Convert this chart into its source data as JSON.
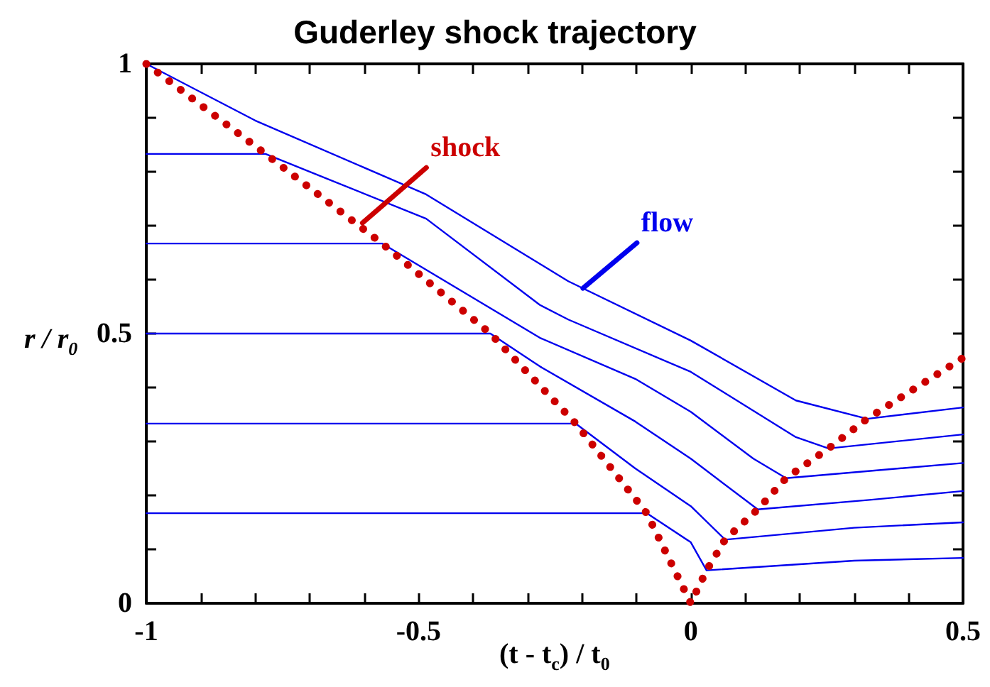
{
  "chart_data": {
    "type": "line",
    "title": "Guderley shock trajectory",
    "xlabel": "(t - t$_{c}$) / t$_{0}$",
    "ylabel": "r / r$_{0}$",
    "xlim": [
      -1,
      0.5
    ],
    "ylim": [
      0,
      1
    ],
    "xticks": [
      -1,
      {
        "value": -0.9,
        "label": null
      },
      {
        "value": -0.8,
        "label": null
      },
      {
        "value": -0.7,
        "label": null
      },
      {
        "value": -0.6,
        "label": null
      },
      -0.5,
      {
        "value": -0.4,
        "label": null
      },
      {
        "value": -0.3,
        "label": null
      },
      {
        "value": -0.2,
        "label": null
      },
      {
        "value": -0.1,
        "label": null
      },
      0,
      {
        "value": 0.1,
        "label": null
      },
      {
        "value": 0.2,
        "label": null
      },
      {
        "value": 0.3,
        "label": null
      },
      {
        "value": 0.4,
        "label": null
      },
      0.5
    ],
    "yticks": [
      0,
      {
        "value": 0.1,
        "label": null
      },
      {
        "value": 0.2,
        "label": null
      },
      {
        "value": 0.3,
        "label": null
      },
      {
        "value": 0.4,
        "label": null
      },
      0.5,
      {
        "value": 0.6,
        "label": null
      },
      {
        "value": 0.7,
        "label": null
      },
      {
        "value": 0.8,
        "label": null
      },
      {
        "value": 0.9,
        "label": null
      },
      1
    ],
    "grid": false,
    "marker": "none",
    "series": [
      {
        "color": "#0000ee",
        "line_style": "solid",
        "x": [
          -1,
          -0.8,
          -0.486,
          -0.225,
          0,
          0.193,
          0.324,
          0.5
        ],
        "values": [
          1,
          0.895,
          0.758,
          0.597,
          0.487,
          0.376,
          0.342,
          0.363
        ]
      },
      {
        "color": "#0000ee",
        "line_style": "solid",
        "x": [
          -1,
          -0.781,
          -0.486,
          -0.277,
          -0.225,
          0,
          0.193,
          0.253,
          0.5
        ],
        "values": [
          0.833,
          0.833,
          0.713,
          0.553,
          0.526,
          0.429,
          0.308,
          0.287,
          0.313
        ]
      },
      {
        "color": "#0000ee",
        "line_style": "solid",
        "x": [
          -1,
          -0.567,
          -0.277,
          -0.102,
          0,
          0.115,
          0.175,
          0.5
        ],
        "values": [
          0.667,
          0.667,
          0.492,
          0.416,
          0.355,
          0.268,
          0.232,
          0.26
        ]
      },
      {
        "color": "#0000ee",
        "line_style": "solid",
        "x": [
          -1,
          -0.368,
          -0.277,
          -0.102,
          0,
          0.123,
          0.332,
          0.5
        ],
        "values": [
          0.5,
          0.5,
          0.439,
          0.337,
          0.268,
          0.174,
          0.192,
          0.208
        ]
      },
      {
        "color": "#0000ee",
        "line_style": "solid",
        "x": [
          -1,
          -0.211,
          -0.102,
          0,
          0.063,
          0.3,
          0.5
        ],
        "values": [
          0.333,
          0.333,
          0.25,
          0.18,
          0.118,
          0.14,
          0.15
        ]
      },
      {
        "color": "#0000ee",
        "line_style": "solid",
        "x": [
          -1,
          -0.081,
          0,
          0.029,
          0.3,
          0.5
        ],
        "values": [
          0.167,
          0.167,
          0.113,
          0.061,
          0.079,
          0.084
        ]
      },
      {
        "color": "#cc0000",
        "line_style": "dotted",
        "x": [
          -1,
          -0.781,
          -0.567,
          -0.368,
          -0.211,
          -0.081,
          0,
          0.029,
          0.063,
          0.123,
          0.175,
          0.253,
          0.324,
          0.5
        ],
        "values": [
          1,
          0.833,
          0.667,
          0.5,
          0.333,
          0.167,
          0,
          0.061,
          0.118,
          0.174,
          0.232,
          0.287,
          0.342,
          0.455
        ]
      }
    ],
    "annotations": [
      {
        "text": "shock",
        "x": -0.603,
        "y": 0.705
      },
      {
        "text": "flow",
        "x": -0.198,
        "y": 0.584
      }
    ]
  }
}
